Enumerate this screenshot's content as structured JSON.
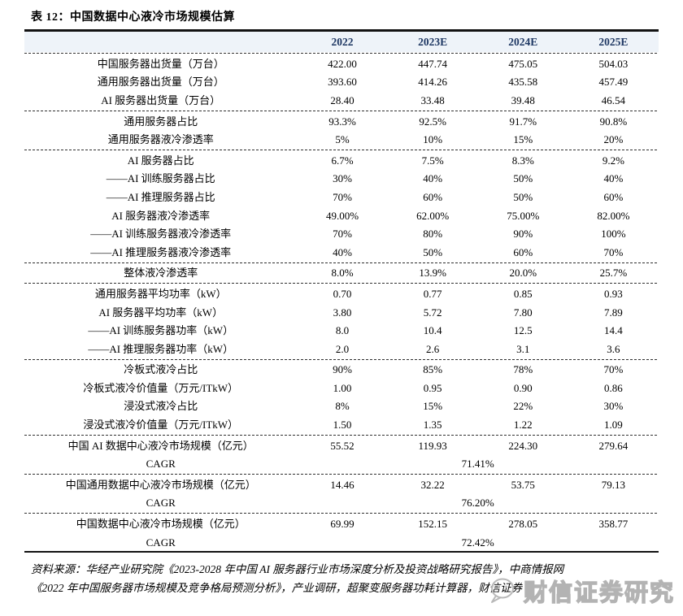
{
  "title": "表 12：中国数据中心液冷市场规模估算",
  "table": {
    "columns": [
      "2022",
      "2023E",
      "2024E",
      "2025E"
    ],
    "sections": [
      {
        "rows": [
          {
            "label": "中国服务器出货量（万台）",
            "values": [
              "422.00",
              "447.74",
              "475.05",
              "504.03"
            ]
          },
          {
            "label": "通用服务器出货量（万台）",
            "values": [
              "393.60",
              "414.26",
              "435.58",
              "457.49"
            ]
          },
          {
            "label": "AI 服务器出货量（万台）",
            "values": [
              "28.40",
              "33.48",
              "39.48",
              "46.54"
            ]
          }
        ]
      },
      {
        "rows": [
          {
            "label": "通用服务器占比",
            "values": [
              "93.3%",
              "92.5%",
              "91.7%",
              "90.8%"
            ]
          },
          {
            "label": "通用服务器液冷渗透率",
            "values": [
              "5%",
              "10%",
              "15%",
              "20%"
            ]
          }
        ]
      },
      {
        "rows": [
          {
            "label": "AI 服务器占比",
            "values": [
              "6.7%",
              "7.5%",
              "8.3%",
              "9.2%"
            ]
          },
          {
            "label": "——AI 训练服务器占比",
            "values": [
              "30%",
              "40%",
              "50%",
              "40%"
            ]
          },
          {
            "label": "——AI 推理服务器占比",
            "values": [
              "70%",
              "60%",
              "50%",
              "60%"
            ]
          },
          {
            "label": "AI 服务器液冷渗透率",
            "values": [
              "49.00%",
              "62.00%",
              "75.00%",
              "82.00%"
            ]
          },
          {
            "label": "——AI 训练服务器液冷渗透率",
            "values": [
              "70%",
              "80%",
              "90%",
              "100%"
            ]
          },
          {
            "label": "——AI 推理服务器液冷渗透率",
            "values": [
              "40%",
              "50%",
              "60%",
              "70%"
            ]
          }
        ]
      },
      {
        "rows": [
          {
            "label": "整体液冷渗透率",
            "values": [
              "8.0%",
              "13.9%",
              "20.0%",
              "25.7%"
            ]
          }
        ]
      },
      {
        "rows": [
          {
            "label": "通用服务器平均功率（kW）",
            "values": [
              "0.70",
              "0.77",
              "0.85",
              "0.93"
            ]
          },
          {
            "label": "AI 服务器平均功率（kW）",
            "values": [
              "3.80",
              "5.72",
              "7.80",
              "7.89"
            ]
          },
          {
            "label": "——AI 训练服务器功率（kW）",
            "values": [
              "8.0",
              "10.4",
              "12.5",
              "14.4"
            ]
          },
          {
            "label": "——AI 推理服务器功率（kW）",
            "values": [
              "2.0",
              "2.6",
              "3.1",
              "3.6"
            ]
          }
        ]
      },
      {
        "rows": [
          {
            "label": "冷板式液冷占比",
            "values": [
              "90%",
              "85%",
              "78%",
              "70%"
            ]
          },
          {
            "label": "冷板式液冷价值量（万元/ITkW）",
            "values": [
              "1.00",
              "0.95",
              "0.90",
              "0.86"
            ]
          },
          {
            "label": "浸没式液冷占比",
            "values": [
              "8%",
              "15%",
              "22%",
              "30%"
            ]
          },
          {
            "label": "浸没式液冷价值量（万元/ITkW）",
            "values": [
              "1.50",
              "1.35",
              "1.22",
              "1.09"
            ]
          }
        ]
      },
      {
        "rows": [
          {
            "label": "中国 AI 数据中心液冷市场规模（亿元）",
            "values": [
              "55.52",
              "119.93",
              "224.30",
              "279.64"
            ]
          },
          {
            "label": "CAGR",
            "span_value": "71.41%"
          }
        ]
      },
      {
        "rows": [
          {
            "label": "中国通用数据中心液冷市场规模（亿元）",
            "values": [
              "14.46",
              "32.22",
              "53.75",
              "79.13"
            ]
          },
          {
            "label": "CAGR",
            "span_value": "76.20%"
          }
        ]
      },
      {
        "rows": [
          {
            "label": "中国数据中心液冷市场规模（亿元）",
            "values": [
              "69.99",
              "152.15",
              "278.05",
              "358.77"
            ]
          },
          {
            "label": "CAGR",
            "span_value": "72.42%"
          }
        ]
      }
    ]
  },
  "source": {
    "line1": "资料来源：华经产业研究院《2023-2028 年中国 AI 服务器行业市场深度分析及投资战略研究报告》，中商情报网",
    "line2": "《2022 年中国服务器市场规模及竞争格局预测分析》，产业调研，超聚变服务器功耗计算器，财信证券"
  },
  "watermark": {
    "text": "财信证券研究",
    "icon": "chat-bubble-smiley-icon"
  },
  "colors": {
    "header_text": "#1f3864",
    "header_bg": "#eef3f9",
    "border": "#121212",
    "body_text": "#000000",
    "watermark": "#b3b3b3"
  }
}
